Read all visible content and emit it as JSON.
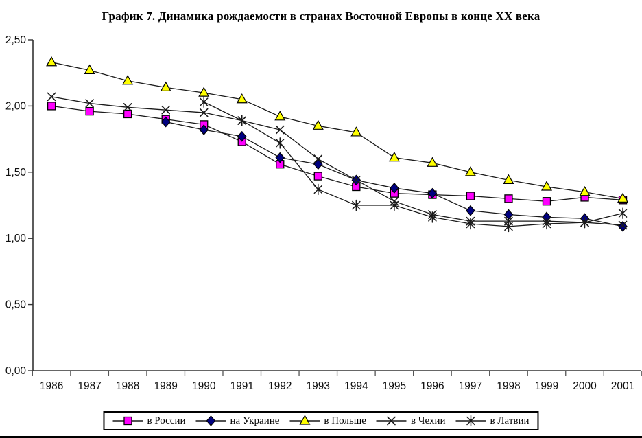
{
  "title": "График 7. Динамика рождаемости в странах Восточной Европы в конце XX века",
  "chart_data": {
    "type": "line",
    "x": [
      1986,
      1987,
      1988,
      1989,
      1990,
      1991,
      1992,
      1993,
      1994,
      1995,
      1996,
      1997,
      1998,
      1999,
      2000,
      2001
    ],
    "xlabel": "",
    "ylabel": "",
    "ylim": [
      0,
      2.5
    ],
    "grid": false,
    "legend_position": "bottom",
    "line_color": "#1a1a1a",
    "y_ticks": [
      {
        "v": 0.0,
        "label": "0,00"
      },
      {
        "v": 0.5,
        "label": "0,50"
      },
      {
        "v": 1.0,
        "label": "1,00"
      },
      {
        "v": 1.5,
        "label": "1,50"
      },
      {
        "v": 2.0,
        "label": "2,00"
      },
      {
        "v": 2.5,
        "label": "2,50"
      }
    ],
    "series": [
      {
        "name": "в России",
        "marker": "square",
        "fill": "#FF00FF",
        "values": [
          2.0,
          1.96,
          1.94,
          1.9,
          1.86,
          1.73,
          1.56,
          1.47,
          1.39,
          1.34,
          1.33,
          1.32,
          1.3,
          1.28,
          1.31,
          1.29
        ]
      },
      {
        "name": "на Украине",
        "marker": "diamond",
        "fill": "#000080",
        "values": [
          null,
          null,
          null,
          1.88,
          1.82,
          1.77,
          1.61,
          1.56,
          1.44,
          1.38,
          1.34,
          1.21,
          1.18,
          1.16,
          1.15,
          1.09
        ]
      },
      {
        "name": "в Польше",
        "marker": "triangle",
        "fill": "#FFFF00",
        "values": [
          2.33,
          2.27,
          2.19,
          2.14,
          2.1,
          2.05,
          1.92,
          1.85,
          1.8,
          1.61,
          1.57,
          1.5,
          1.44,
          1.39,
          1.35,
          1.3
        ]
      },
      {
        "name": "в Чехии",
        "marker": "x",
        "fill": "#000000",
        "values": [
          2.07,
          2.02,
          1.99,
          1.97,
          1.95,
          1.89,
          1.82,
          1.6,
          1.44,
          1.28,
          1.18,
          1.13,
          1.13,
          1.13,
          1.12,
          1.1
        ]
      },
      {
        "name": "в Латвии",
        "marker": "asterisk",
        "fill": "#000000",
        "values": [
          null,
          null,
          null,
          null,
          2.03,
          1.89,
          1.72,
          1.37,
          1.25,
          1.25,
          1.16,
          1.11,
          1.09,
          1.11,
          1.12,
          1.19
        ]
      }
    ]
  }
}
